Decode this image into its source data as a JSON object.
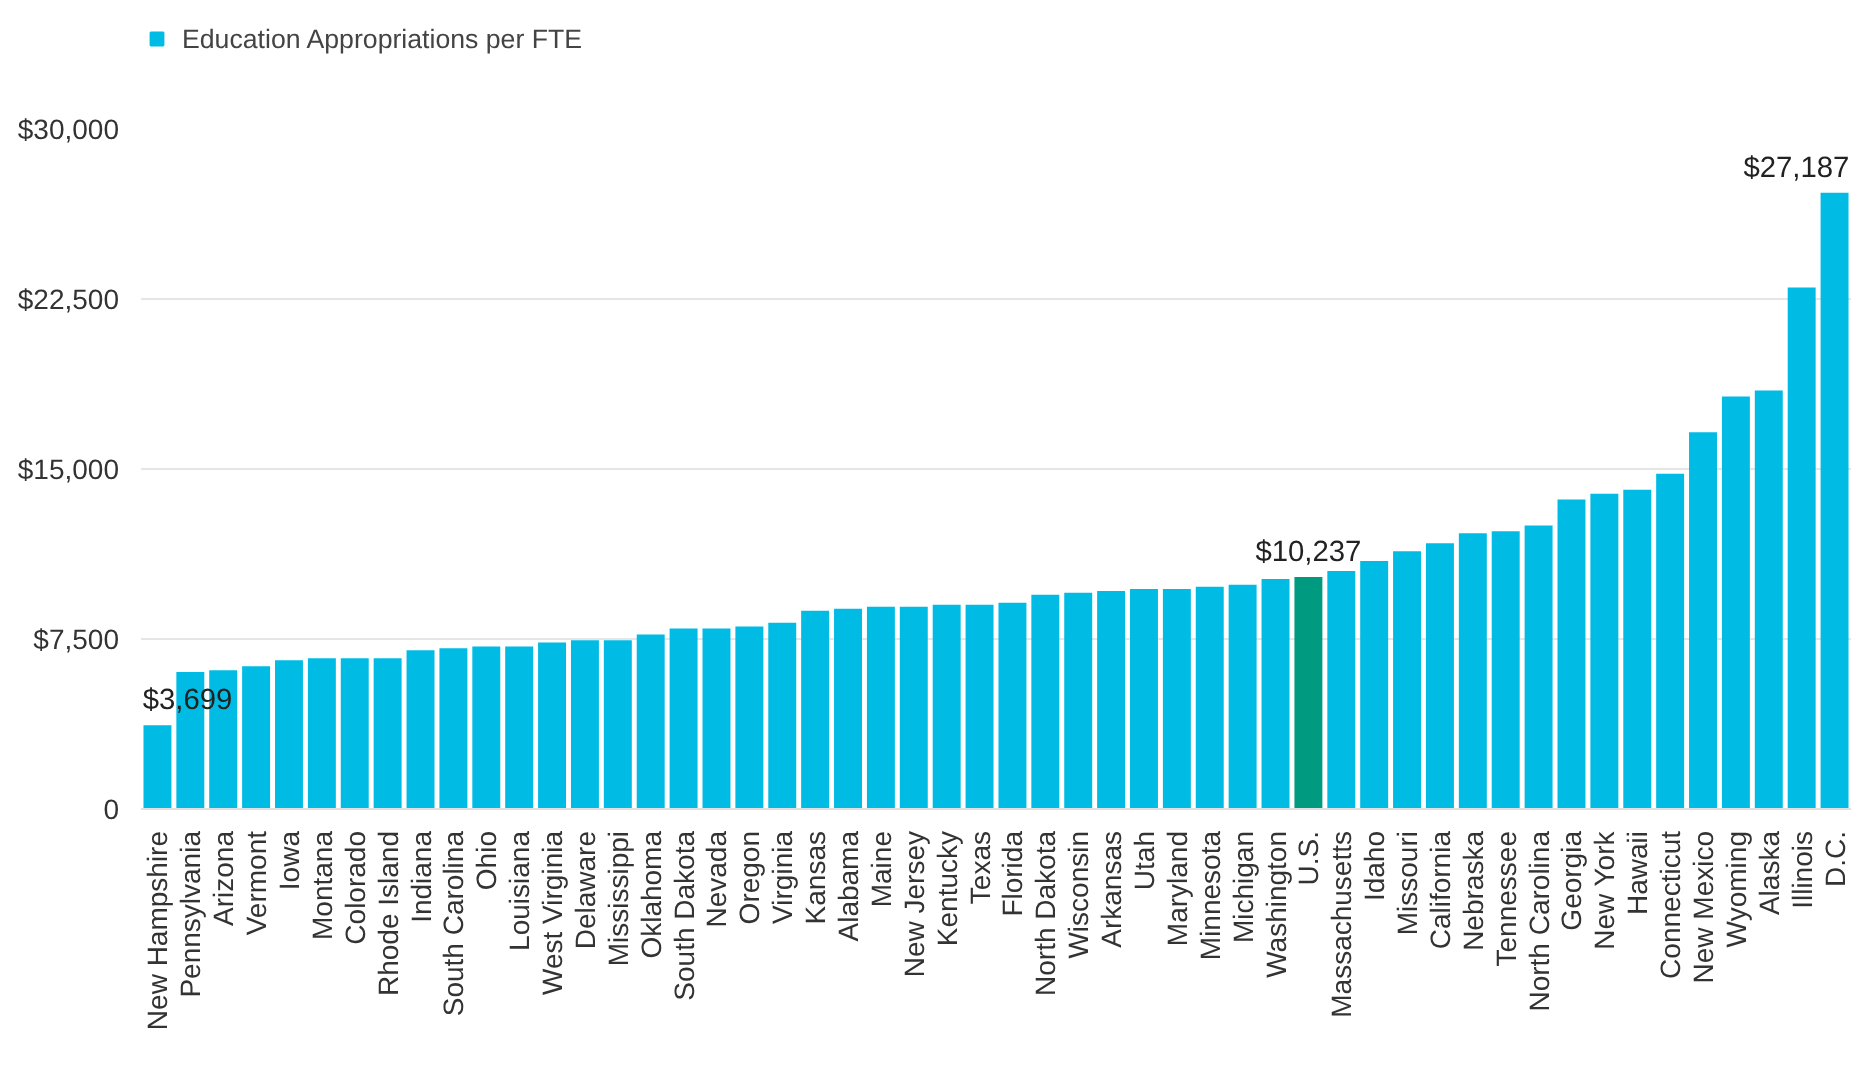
{
  "chart_data": {
    "type": "bar",
    "categories": [
      "New Hampshire",
      "Pennsylvania",
      "Arizona",
      "Vermont",
      "Iowa",
      "Montana",
      "Colorado",
      "Rhode Island",
      "Indiana",
      "South Carolina",
      "Ohio",
      "Louisiana",
      "West Virginia",
      "Delaware",
      "Mississippi",
      "Oklahoma",
      "South Dakota",
      "Nevada",
      "Oregon",
      "Virginia",
      "Kansas",
      "Alabama",
      "Maine",
      "New Jersey",
      "Kentucky",
      "Texas",
      "Florida",
      "North Dakota",
      "Wisconsin",
      "Arkansas",
      "Utah",
      "Maryland",
      "Minnesota",
      "Michigan",
      "Washington",
      "U.S.",
      "Massachusetts",
      "Idaho",
      "Missouri",
      "California",
      "Nebraska",
      "Tennessee",
      "North Carolina",
      "Georgia",
      "New York",
      "Hawaii",
      "Connecticut",
      "New Mexico",
      "Wyoming",
      "Alaska",
      "Illinois",
      "D.C."
    ],
    "series": [
      {
        "name": "Education Appropriations per FTE",
        "color": "#00bce4",
        "colors": [
          "#00bce4",
          "#00bce4",
          "#00bce4",
          "#00bce4",
          "#00bce4",
          "#00bce4",
          "#00bce4",
          "#00bce4",
          "#00bce4",
          "#00bce4",
          "#00bce4",
          "#00bce4",
          "#00bce4",
          "#00bce4",
          "#00bce4",
          "#00bce4",
          "#00bce4",
          "#00bce4",
          "#00bce4",
          "#00bce4",
          "#00bce4",
          "#00bce4",
          "#00bce4",
          "#00bce4",
          "#00bce4",
          "#00bce4",
          "#00bce4",
          "#00bce4",
          "#00bce4",
          "#00bce4",
          "#00bce4",
          "#00bce4",
          "#00bce4",
          "#00bce4",
          "#00bce4",
          "#009a80",
          "#00bce4",
          "#00bce4",
          "#00bce4",
          "#00bce4",
          "#00bce4",
          "#00bce4",
          "#00bce4",
          "#00bce4",
          "#00bce4",
          "#00bce4",
          "#00bce4",
          "#00bce4",
          "#00bce4",
          "#00bce4",
          "#00bce4",
          "#00bce4"
        ],
        "values": [
          3699,
          6040,
          6120,
          6300,
          6560,
          6650,
          6650,
          6650,
          7000,
          7090,
          7170,
          7170,
          7350,
          7440,
          7440,
          7700,
          7960,
          7960,
          8050,
          8220,
          8750,
          8840,
          8920,
          8920,
          9010,
          9010,
          9100,
          9450,
          9540,
          9620,
          9710,
          9710,
          9800,
          9890,
          10150,
          10237,
          10500,
          10940,
          11370,
          11720,
          12160,
          12250,
          12510,
          13650,
          13910,
          14090,
          14790,
          16620,
          18200,
          18460,
          23010,
          27187
        ],
        "value_labels": [
          "$3,699",
          null,
          null,
          null,
          null,
          null,
          null,
          null,
          null,
          null,
          null,
          null,
          null,
          null,
          null,
          null,
          null,
          null,
          null,
          null,
          null,
          null,
          null,
          null,
          null,
          null,
          null,
          null,
          null,
          null,
          null,
          null,
          null,
          null,
          null,
          "$10,237",
          null,
          null,
          null,
          null,
          null,
          null,
          null,
          null,
          null,
          null,
          null,
          null,
          null,
          null,
          null,
          "$27,187"
        ]
      }
    ],
    "ylim": [
      0,
      30000
    ],
    "yticks": [
      {
        "value": 0,
        "label": "0"
      },
      {
        "value": 7500,
        "label": "$7,500"
      },
      {
        "value": 15000,
        "label": "$15,000"
      },
      {
        "value": 22500,
        "label": "$22,500"
      },
      {
        "value": 30000,
        "label": "$30,000"
      }
    ],
    "grid": "y",
    "legend": "top left"
  }
}
